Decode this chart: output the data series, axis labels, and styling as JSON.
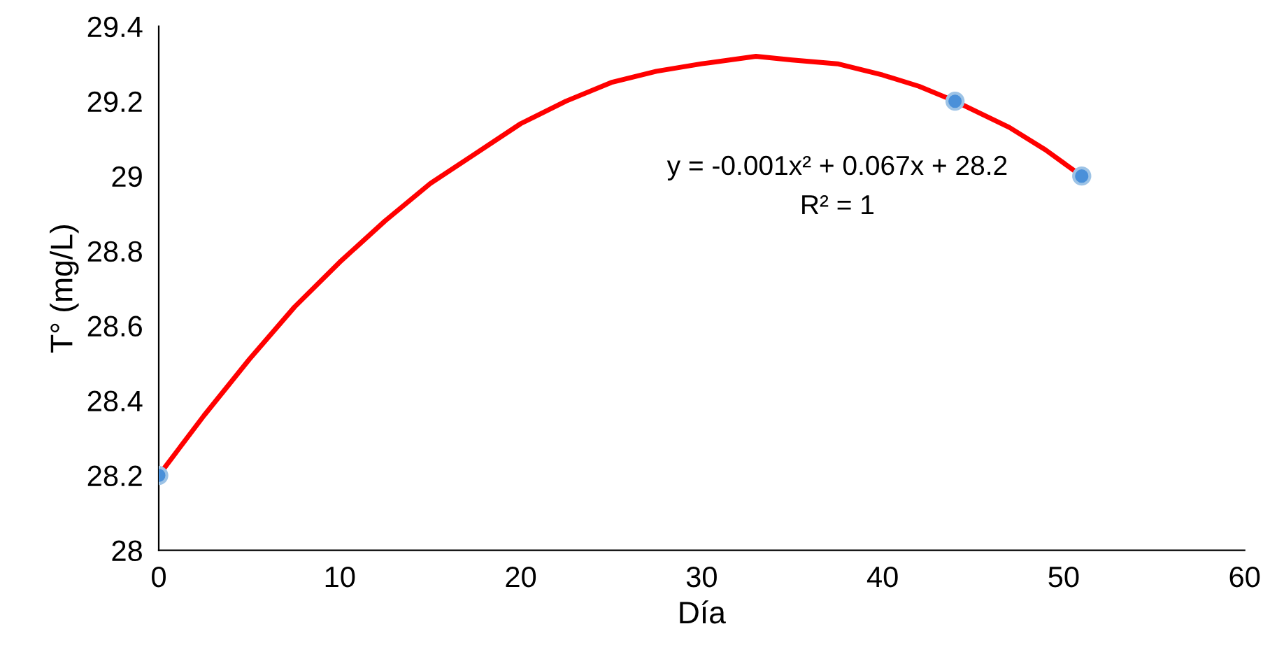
{
  "chart_data": {
    "type": "scatter",
    "xlabel": "Día",
    "ylabel": "T° (mg/L)",
    "xlim": [
      0,
      60
    ],
    "xticks": [
      0,
      10,
      20,
      30,
      40,
      50,
      60
    ],
    "ylim": [
      28,
      29.4
    ],
    "yticks": [
      28,
      28.2,
      28.4,
      28.6,
      28.8,
      29,
      29.2,
      29.4
    ],
    "grid": false,
    "series": [
      {
        "color": "#4a90d9",
        "marker": "circle",
        "x": [
          0,
          44,
          51
        ],
        "values": [
          28.2,
          29.2,
          29.0
        ]
      },
      {
        "type": "line",
        "color": "#ff0000",
        "line_style": "solid",
        "x": [
          0,
          2.5,
          5,
          7.5,
          10,
          12.5,
          15,
          17.5,
          20,
          22.5,
          25,
          27.5,
          30,
          33,
          35,
          37.5,
          40,
          42,
          44,
          47,
          49,
          51
        ],
        "values": [
          28.2,
          28.36,
          28.51,
          28.65,
          28.77,
          28.88,
          28.98,
          29.06,
          29.14,
          29.2,
          29.25,
          29.28,
          29.3,
          29.32,
          29.31,
          29.3,
          29.27,
          29.24,
          29.2,
          29.13,
          29.07,
          29.0
        ]
      }
    ],
    "annotations": [
      "y = -0.001x² + 0.067x + 28.2",
      "R² = 1"
    ]
  }
}
